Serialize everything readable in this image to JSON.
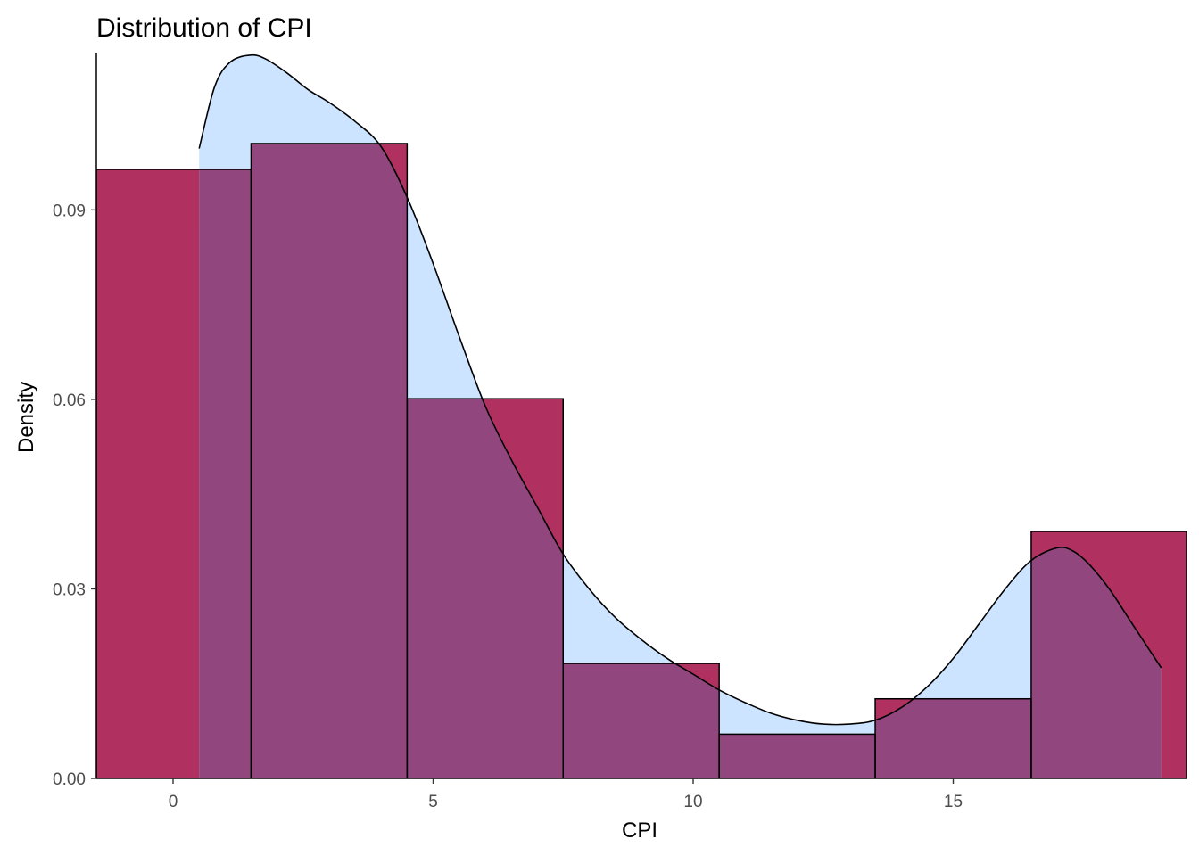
{
  "chart_data": {
    "type": "bar",
    "title": "Distribution of CPI",
    "xlabel": "CPI",
    "ylabel": "Density",
    "xlim": [
      -1.5,
      19.3
    ],
    "ylim": [
      0,
      0.1145
    ],
    "x_ticks": [
      0,
      5,
      10,
      15
    ],
    "x_tick_labels": [
      "0",
      "5",
      "10",
      "15"
    ],
    "y_ticks": [
      0,
      0.03,
      0.06,
      0.09
    ],
    "y_tick_labels": [
      "0.00",
      "0.03",
      "0.06",
      "0.09"
    ],
    "grid": false,
    "bin_width": 3,
    "histogram_bins": [
      {
        "x0": -1.5,
        "x1": 1.5,
        "density": 0.0964
      },
      {
        "x0": 1.5,
        "x1": 4.5,
        "density": 0.1005
      },
      {
        "x0": 4.5,
        "x1": 7.5,
        "density": 0.0601
      },
      {
        "x0": 7.5,
        "x1": 10.5,
        "density": 0.0182
      },
      {
        "x0": 10.5,
        "x1": 13.5,
        "density": 0.007
      },
      {
        "x0": 13.5,
        "x1": 16.5,
        "density": 0.0126
      },
      {
        "x0": 16.5,
        "x1": 19.5,
        "density": 0.0391
      }
    ],
    "density_curve": {
      "x": [
        0.5,
        0.8,
        1.1,
        1.5,
        1.8,
        2.2,
        2.6,
        3.0,
        3.5,
        4.0,
        4.5,
        5.0,
        5.5,
        6.0,
        6.5,
        7.0,
        7.5,
        8.0,
        8.5,
        9.0,
        9.5,
        10.0,
        10.5,
        11.0,
        11.5,
        12.0,
        12.5,
        13.0,
        13.5,
        14.0,
        14.5,
        15.0,
        15.5,
        16.0,
        16.5,
        17.0,
        17.3,
        17.6,
        18.0,
        18.4,
        18.8,
        19.0
      ],
      "y": [
        0.0997,
        0.1095,
        0.1134,
        0.1145,
        0.1138,
        0.1116,
        0.109,
        0.107,
        0.104,
        0.1,
        0.092,
        0.0815,
        0.07,
        0.059,
        0.0505,
        0.043,
        0.0355,
        0.03,
        0.0255,
        0.022,
        0.019,
        0.0165,
        0.014,
        0.012,
        0.0103,
        0.0092,
        0.0086,
        0.0086,
        0.0092,
        0.0112,
        0.0145,
        0.019,
        0.0245,
        0.03,
        0.0345,
        0.0365,
        0.036,
        0.034,
        0.03,
        0.025,
        0.02,
        0.0175
      ]
    },
    "colors": {
      "histogram_fill": "#b03060",
      "density_fill": "#cce4ff",
      "overlap_fill": "#91467e",
      "bar_outline": "#000000",
      "curve": "#000000"
    }
  }
}
